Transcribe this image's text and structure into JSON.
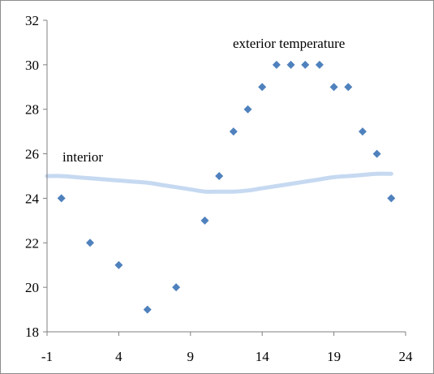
{
  "chart_data": {
    "type": "scatter",
    "title": "",
    "xlabel": "",
    "ylabel": "",
    "xlim": [
      -1,
      24
    ],
    "ylim": [
      18,
      32
    ],
    "x_ticks": [
      -1,
      4,
      9,
      14,
      19,
      24
    ],
    "y_ticks": [
      18,
      20,
      22,
      24,
      26,
      28,
      30,
      32
    ],
    "grid": false,
    "legend": "none",
    "annotations": {
      "exterior": "exterior  temperature",
      "interior": "interior"
    },
    "series": [
      {
        "name": "exterior  temperature",
        "type": "scatter",
        "marker": "diamond",
        "color": "#4f81bd",
        "x": [
          0,
          2,
          4,
          6,
          8,
          10,
          11,
          12,
          13,
          14,
          15,
          16,
          17,
          18,
          19,
          20,
          21,
          22,
          23
        ],
        "y": [
          24,
          22,
          21,
          19,
          20,
          23,
          25,
          27,
          28,
          29,
          30,
          30,
          30,
          30,
          29,
          29,
          27,
          26,
          24
        ]
      },
      {
        "name": "interior",
        "type": "line",
        "color": "#c6d9f1",
        "x": [
          -1,
          0,
          1,
          2,
          3,
          4,
          5,
          6,
          7,
          8,
          9,
          10,
          11,
          12,
          13,
          14,
          15,
          16,
          17,
          18,
          19,
          20,
          21,
          22,
          23
        ],
        "y": [
          25.0,
          25.0,
          24.95,
          24.9,
          24.85,
          24.8,
          24.75,
          24.7,
          24.6,
          24.5,
          24.4,
          24.3,
          24.3,
          24.3,
          24.35,
          24.45,
          24.55,
          24.65,
          24.75,
          24.85,
          24.95,
          25.0,
          25.05,
          25.1,
          25.1
        ]
      }
    ]
  }
}
